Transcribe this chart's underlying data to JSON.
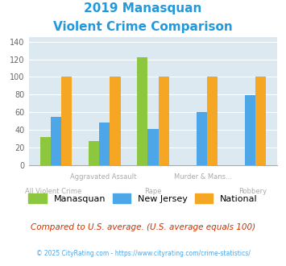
{
  "title_line1": "2019 Manasquan",
  "title_line2": "Violent Crime Comparison",
  "manasquan": [
    32,
    27,
    122,
    0,
    0
  ],
  "new_jersey": [
    55,
    48,
    41,
    60,
    79
  ],
  "national": [
    100,
    100,
    100,
    100,
    100
  ],
  "color_manasquan": "#8dc63f",
  "color_nj": "#4da6e8",
  "color_national": "#f5a623",
  "ylim": [
    0,
    145
  ],
  "yticks": [
    0,
    20,
    40,
    60,
    80,
    100,
    120,
    140
  ],
  "background_color": "#dde9f0",
  "title_color": "#2299dd",
  "top_xlabel_color": "#aaaaaa",
  "bottom_xlabel_color": "#aaaaaa",
  "footer_note": "Compared to U.S. average. (U.S. average equals 100)",
  "footer_copy": "© 2025 CityRating.com - https://www.cityrating.com/crime-statistics/",
  "legend_labels": [
    "Manasquan",
    "New Jersey",
    "National"
  ],
  "top_labels": {
    "1": "Aggravated Assault",
    "3": "Murder & Mans..."
  },
  "bottom_labels": {
    "0": "All Violent Crime",
    "2": "Rape",
    "4": "Robbery"
  }
}
